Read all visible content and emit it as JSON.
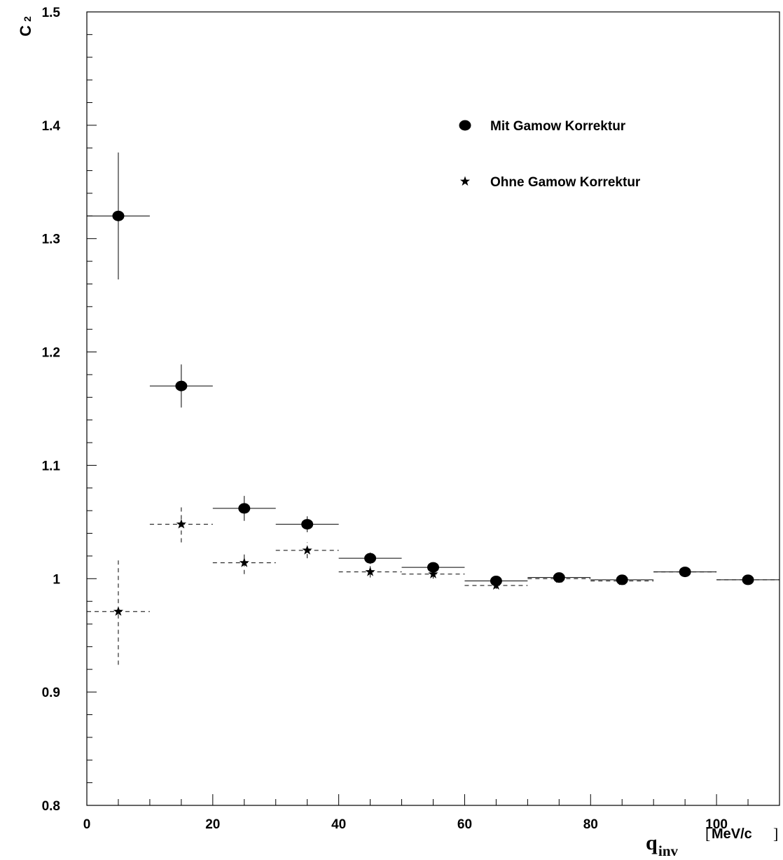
{
  "chart_data": {
    "type": "scatter",
    "xlabel": {
      "main": "q",
      "sub": "inv",
      "unit_open": "[",
      "unit": "MeV/c",
      "unit_close": "]"
    },
    "ylabel": {
      "main": "C",
      "sub": "2"
    },
    "xlim": [
      0,
      110
    ],
    "ylim": [
      0.8,
      1.5
    ],
    "x_ticks": [
      {
        "value": 0,
        "label": "0"
      },
      {
        "value": 20,
        "label": "20"
      },
      {
        "value": 40,
        "label": "40"
      },
      {
        "value": 60,
        "label": "60"
      },
      {
        "value": 80,
        "label": "80"
      },
      {
        "value": 100,
        "label": "100"
      }
    ],
    "y_ticks": [
      {
        "value": 0.8,
        "label": "0.8"
      },
      {
        "value": 0.9,
        "label": "0.9"
      },
      {
        "value": 1.0,
        "label": "1"
      },
      {
        "value": 1.1,
        "label": "1.1"
      },
      {
        "value": 1.2,
        "label": "1.2"
      },
      {
        "value": 1.3,
        "label": "1.3"
      },
      {
        "value": 1.4,
        "label": "1.4"
      },
      {
        "value": 1.5,
        "label": "1.5"
      }
    ],
    "grid": false,
    "legend_position": "top-right",
    "series": [
      {
        "name": "Mit Gamow Korrektur",
        "marker": "circle",
        "line_style": "solid",
        "x": [
          5,
          15,
          25,
          35,
          45,
          55,
          65,
          75,
          85,
          95,
          105
        ],
        "x_err": [
          5,
          5,
          5,
          5,
          5,
          5,
          5,
          5,
          5,
          5,
          5
        ],
        "y": [
          1.32,
          1.17,
          1.062,
          1.048,
          1.018,
          1.01,
          0.998,
          1.001,
          0.999,
          1.006,
          0.999
        ],
        "y_err": [
          0.056,
          0.019,
          0.011,
          0.007,
          0.005,
          0.004,
          0.003,
          0.002,
          0.002,
          0.002,
          0.002
        ]
      },
      {
        "name": "Ohne Gamow Korrektur",
        "marker": "star",
        "line_style": "dashed",
        "x": [
          5,
          15,
          25,
          35,
          45,
          55,
          65,
          75,
          85,
          95,
          105
        ],
        "x_err": [
          5,
          5,
          5,
          5,
          5,
          5,
          5,
          5,
          5,
          5,
          5
        ],
        "y": [
          0.971,
          1.048,
          1.014,
          1.025,
          1.006,
          1.004,
          0.994,
          1.0,
          0.998,
          1.006,
          0.999
        ],
        "y_err": [
          0.047,
          0.016,
          0.01,
          0.007,
          0.005,
          0.004,
          0.003,
          0.002,
          0.002,
          0.002,
          0.002
        ]
      }
    ]
  }
}
